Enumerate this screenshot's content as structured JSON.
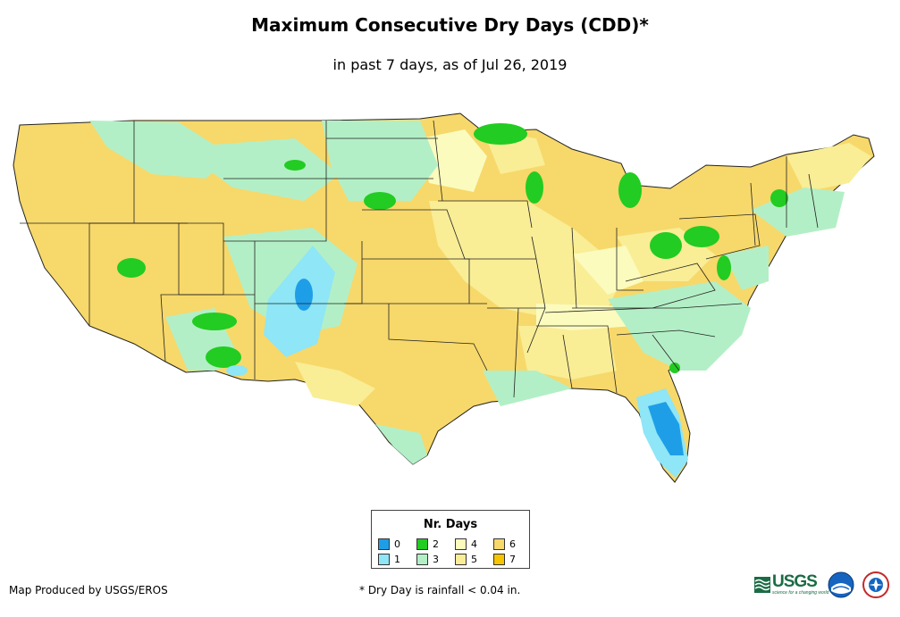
{
  "header": {
    "title": "Maximum Consecutive Dry Days (CDD)*",
    "subtitle": "in past 7 days, as of Jul 26, 2019"
  },
  "map": {
    "region": "Contiguous United States",
    "colors": {
      "d0": "#1f9ee8",
      "d1": "#8ee6f6",
      "d2": "#22cc22",
      "d3": "#b3efc6",
      "d4": "#fbfbbe",
      "d5": "#f9ed96",
      "d6": "#f7d86a",
      "d7": "#f6c400",
      "state_border": "#222222"
    }
  },
  "legend": {
    "title": "Nr. Days",
    "items": [
      {
        "label": "0",
        "color": "#1f9ee8"
      },
      {
        "label": "1",
        "color": "#8ee6f6"
      },
      {
        "label": "2",
        "color": "#22cc22"
      },
      {
        "label": "3",
        "color": "#b3efc6"
      },
      {
        "label": "4",
        "color": "#fbfbbe"
      },
      {
        "label": "5",
        "color": "#f9ed96"
      },
      {
        "label": "6",
        "color": "#f7d86a"
      },
      {
        "label": "7",
        "color": "#f6c400"
      }
    ]
  },
  "footer": {
    "credit": "Map Produced by USGS/EROS",
    "footnote": "* Dry Day is rainfall < 0.04 in.",
    "logos": {
      "usgs": "USGS",
      "usgs_tagline": "science for a changing world",
      "noaa": "NOAA",
      "nws": "National Weather Service"
    }
  }
}
